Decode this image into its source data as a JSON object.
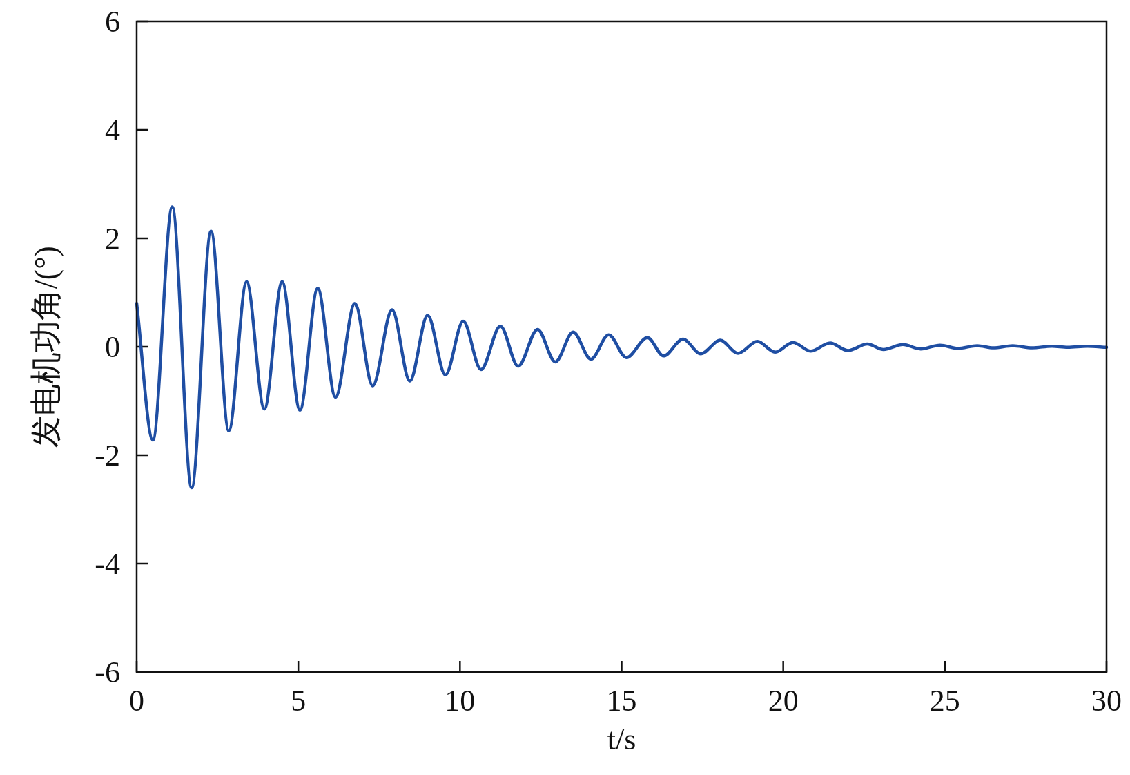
{
  "chart_data": {
    "type": "line",
    "xlabel": "t/s",
    "ylabel": "发电机功角/(°)",
    "xlim": [
      0,
      30
    ],
    "ylim": [
      -6,
      6
    ],
    "xticks": [
      0,
      5,
      10,
      15,
      20,
      25,
      30
    ],
    "yticks": [
      {
        "value": -6,
        "label": "-6"
      },
      {
        "value": -4,
        "label": "-4"
      },
      {
        "value": -2,
        "label": "-2"
      },
      0,
      2,
      4,
      6
    ],
    "grid": false,
    "marker": "none",
    "line_style": "solid",
    "series": [
      {
        "color": "#1f4ea3",
        "x": [
          0,
          0.5,
          1.1,
          1.7,
          2.3,
          2.85,
          3.4,
          3.95,
          4.5,
          5.05,
          5.6,
          6.15,
          6.75,
          7.3,
          7.9,
          8.45,
          9.0,
          9.55,
          10.1,
          10.65,
          11.25,
          11.8,
          12.4,
          12.95,
          13.5,
          14.05,
          14.6,
          15.15,
          15.8,
          16.3,
          16.9,
          17.45,
          18.05,
          18.6,
          19.2,
          19.75,
          20.3,
          20.85,
          21.45,
          22.0,
          22.6,
          23.1,
          23.7,
          24.25,
          24.85,
          25.4,
          26.0,
          26.5,
          27.1,
          27.7,
          28.3,
          28.8,
          29.4,
          30
        ],
        "values": [
          0.8,
          -1.72,
          2.58,
          -2.6,
          2.13,
          -1.55,
          1.2,
          -1.15,
          1.2,
          -1.17,
          1.08,
          -0.93,
          0.8,
          -0.72,
          0.68,
          -0.63,
          0.58,
          -0.52,
          0.47,
          -0.42,
          0.38,
          -0.36,
          0.32,
          -0.28,
          0.27,
          -0.23,
          0.22,
          -0.2,
          0.17,
          -0.17,
          0.14,
          -0.13,
          0.12,
          -0.12,
          0.1,
          -0.1,
          0.08,
          -0.08,
          0.07,
          -0.07,
          0.05,
          -0.05,
          0.04,
          -0.04,
          0.03,
          -0.03,
          0.02,
          -0.02,
          0.02,
          -0.02,
          0.01,
          -0.01,
          0.01,
          -0.01
        ]
      }
    ]
  }
}
